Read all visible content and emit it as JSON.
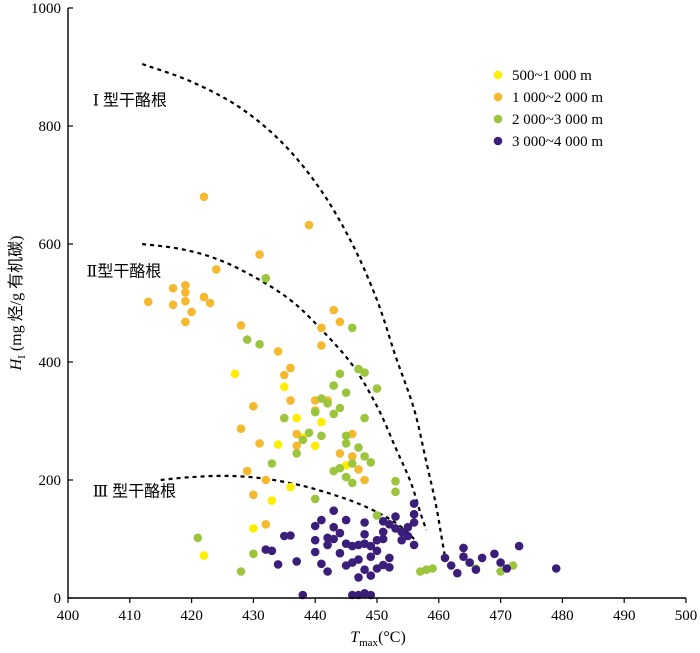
{
  "chart_data": {
    "type": "scatter",
    "xlabel_main": "T",
    "xlabel_sub": "max",
    "xlabel_unit": "(°C)",
    "ylabel_main": "H",
    "ylabel_sub": "I",
    "ylabel_unit": " (mg 烃/g 有机碳)",
    "xlim": [
      400,
      500
    ],
    "ylim": [
      0,
      1000
    ],
    "xticks": [
      400,
      410,
      420,
      430,
      440,
      450,
      460,
      470,
      480,
      490,
      500
    ],
    "yticks": [
      0,
      200,
      400,
      600,
      800,
      1000
    ],
    "legend_position": "top-right",
    "grid": false,
    "series": [
      {
        "name": "500~1 000 m",
        "color": "#ffee00",
        "points": [
          [
            422,
            72
          ],
          [
            427,
            380
          ],
          [
            430,
            118
          ],
          [
            433,
            165
          ],
          [
            434,
            260
          ],
          [
            435,
            358
          ],
          [
            436,
            188
          ],
          [
            437,
            305
          ],
          [
            438,
            272
          ],
          [
            440,
            258
          ],
          [
            441,
            298
          ],
          [
            445,
            225
          ]
        ]
      },
      {
        "name": "1 000~2 000 m",
        "color": "#f5b82e",
        "points": [
          [
            413,
            502
          ],
          [
            417,
            525
          ],
          [
            417,
            497
          ],
          [
            419,
            530
          ],
          [
            419,
            518
          ],
          [
            419,
            503
          ],
          [
            419,
            468
          ],
          [
            420,
            485
          ],
          [
            422,
            680
          ],
          [
            422,
            510
          ],
          [
            423,
            500
          ],
          [
            424,
            557
          ],
          [
            428,
            462
          ],
          [
            428,
            287
          ],
          [
            429,
            215
          ],
          [
            430,
            325
          ],
          [
            430,
            175
          ],
          [
            431,
            582
          ],
          [
            431,
            262
          ],
          [
            432,
            200
          ],
          [
            432,
            125
          ],
          [
            434,
            418
          ],
          [
            435,
            378
          ],
          [
            436,
            390
          ],
          [
            436,
            335
          ],
          [
            437,
            278
          ],
          [
            437,
            258
          ],
          [
            439,
            632
          ],
          [
            440,
            335
          ],
          [
            440,
            318
          ],
          [
            441,
            458
          ],
          [
            441,
            428
          ],
          [
            442,
            335
          ],
          [
            442,
            330
          ],
          [
            443,
            488
          ],
          [
            444,
            468
          ],
          [
            444,
            245
          ],
          [
            446,
            278
          ],
          [
            446,
            240
          ],
          [
            447,
            218
          ],
          [
            448,
            200
          ]
        ]
      },
      {
        "name": "2 000~3 000 m",
        "color": "#9bc53d",
        "points": [
          [
            421,
            102
          ],
          [
            428,
            45
          ],
          [
            429,
            438
          ],
          [
            430,
            75
          ],
          [
            431,
            430
          ],
          [
            432,
            542
          ],
          [
            433,
            228
          ],
          [
            435,
            305
          ],
          [
            437,
            245
          ],
          [
            438,
            268
          ],
          [
            439,
            280
          ],
          [
            440,
            315
          ],
          [
            440,
            168
          ],
          [
            441,
            338
          ],
          [
            441,
            275
          ],
          [
            442,
            330
          ],
          [
            443,
            360
          ],
          [
            443,
            312
          ],
          [
            443,
            215
          ],
          [
            444,
            380
          ],
          [
            444,
            322
          ],
          [
            444,
            220
          ],
          [
            445,
            348
          ],
          [
            445,
            275
          ],
          [
            445,
            262
          ],
          [
            445,
            205
          ],
          [
            446,
            458
          ],
          [
            446,
            228
          ],
          [
            446,
            195
          ],
          [
            447,
            388
          ],
          [
            447,
            255
          ],
          [
            448,
            382
          ],
          [
            448,
            305
          ],
          [
            448,
            240
          ],
          [
            449,
            230
          ],
          [
            450,
            355
          ],
          [
            450,
            140
          ],
          [
            453,
            198
          ],
          [
            453,
            180
          ],
          [
            457,
            45
          ],
          [
            458,
            48
          ],
          [
            459,
            50
          ],
          [
            466,
            50
          ],
          [
            470,
            45
          ],
          [
            472,
            55
          ]
        ]
      },
      {
        "name": "3 000~4 000 m",
        "color": "#3a1e7a",
        "points": [
          [
            432,
            82
          ],
          [
            433,
            80
          ],
          [
            434,
            57
          ],
          [
            435,
            105
          ],
          [
            436,
            106
          ],
          [
            437,
            62
          ],
          [
            438,
            5
          ],
          [
            440,
            122
          ],
          [
            440,
            98
          ],
          [
            440,
            78
          ],
          [
            441,
            132
          ],
          [
            441,
            58
          ],
          [
            442,
            102
          ],
          [
            442,
            90
          ],
          [
            442,
            45
          ],
          [
            443,
            148
          ],
          [
            443,
            120
          ],
          [
            443,
            100
          ],
          [
            444,
            110
          ],
          [
            444,
            76
          ],
          [
            445,
            132
          ],
          [
            445,
            92
          ],
          [
            445,
            55
          ],
          [
            446,
            88
          ],
          [
            446,
            60
          ],
          [
            446,
            5
          ],
          [
            447,
            90
          ],
          [
            447,
            65
          ],
          [
            447,
            35
          ],
          [
            447,
            5
          ],
          [
            448,
            128
          ],
          [
            448,
            108
          ],
          [
            448,
            92
          ],
          [
            448,
            48
          ],
          [
            448,
            8
          ],
          [
            449,
            88
          ],
          [
            449,
            70
          ],
          [
            449,
            38
          ],
          [
            449,
            5
          ],
          [
            450,
            98
          ],
          [
            450,
            80
          ],
          [
            450,
            50
          ],
          [
            451,
            130
          ],
          [
            451,
            112
          ],
          [
            451,
            100
          ],
          [
            451,
            56
          ],
          [
            452,
            68
          ],
          [
            452,
            52
          ],
          [
            452,
            125
          ],
          [
            453,
            118
          ],
          [
            453,
            138
          ],
          [
            454,
            112
          ],
          [
            454,
            98
          ],
          [
            455,
            120
          ],
          [
            455,
            105
          ],
          [
            456,
            160
          ],
          [
            456,
            142
          ],
          [
            456,
            128
          ],
          [
            456,
            90
          ],
          [
            461,
            68
          ],
          [
            462,
            55
          ],
          [
            463,
            42
          ],
          [
            464,
            85
          ],
          [
            464,
            70
          ],
          [
            465,
            60
          ],
          [
            466,
            48
          ],
          [
            467,
            68
          ],
          [
            469,
            75
          ],
          [
            470,
            60
          ],
          [
            471,
            50
          ],
          [
            473,
            88
          ],
          [
            479,
            50
          ]
        ]
      }
    ],
    "annotations": [
      {
        "text": "Ⅰ 型干酪根",
        "x": 404,
        "y": 835
      },
      {
        "text": "Ⅱ型干酪根",
        "x": 403,
        "y": 545
      },
      {
        "text": "Ⅲ 型干酪根",
        "x": 404,
        "y": 172
      }
    ],
    "boundary_curves": [
      {
        "name": "type-1-boundary",
        "points": [
          [
            412,
            905
          ],
          [
            420,
            875
          ],
          [
            428,
            830
          ],
          [
            435,
            768
          ],
          [
            441,
            690
          ],
          [
            446,
            600
          ],
          [
            450,
            505
          ],
          [
            453,
            410
          ],
          [
            456,
            320
          ],
          [
            458,
            230
          ],
          [
            459.5,
            160
          ],
          [
            460.5,
            100
          ],
          [
            461,
            70
          ]
        ]
      },
      {
        "name": "type-2-boundary",
        "points": [
          [
            412,
            600
          ],
          [
            418,
            592
          ],
          [
            424,
            575
          ],
          [
            430,
            545
          ],
          [
            436,
            505
          ],
          [
            441,
            455
          ],
          [
            446,
            395
          ],
          [
            450,
            325
          ],
          [
            453,
            255
          ],
          [
            455.5,
            195
          ],
          [
            457,
            145
          ],
          [
            458,
            115
          ]
        ]
      },
      {
        "name": "type-3-boundary",
        "points": [
          [
            415,
            200
          ],
          [
            420,
            205
          ],
          [
            426,
            207
          ],
          [
            432,
            202
          ],
          [
            438,
            190
          ],
          [
            443,
            175
          ],
          [
            447,
            160
          ],
          [
            451,
            140
          ],
          [
            454,
            120
          ],
          [
            456,
            100
          ]
        ]
      }
    ]
  }
}
